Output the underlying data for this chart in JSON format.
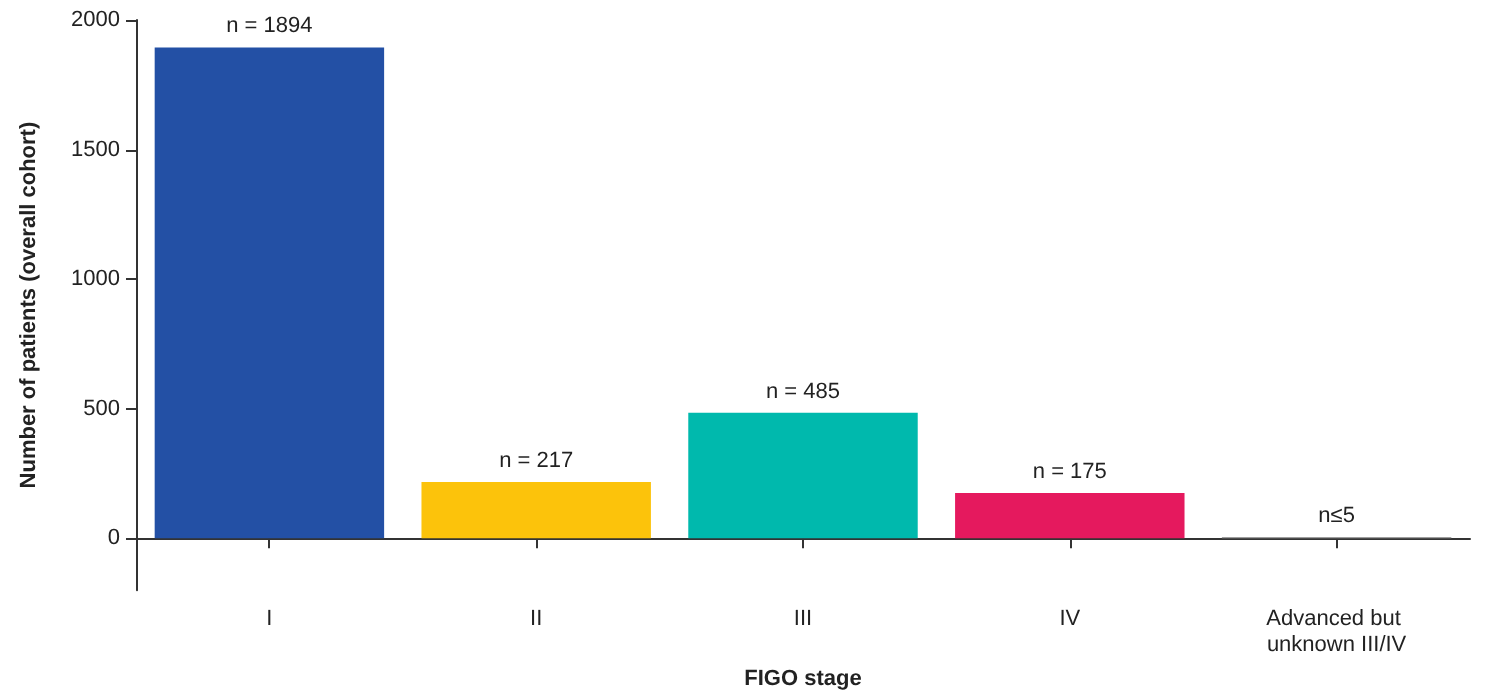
{
  "chart_data": {
    "type": "bar",
    "xlabel": "FIGO stage",
    "ylabel": "Number of patients (overall cohort)",
    "categories": [
      "I",
      "II",
      "III",
      "IV",
      "Advanced but unknown III/IV"
    ],
    "values": [
      1894,
      217,
      485,
      175,
      5
    ],
    "colors": [
      "#2350a5",
      "#fcc30b",
      "#00b9ad",
      "#e5195e",
      "#9e9e9e"
    ],
    "value_labels": [
      "n = 1894",
      "n = 217",
      "n = 485",
      "n = 175",
      "n≤5"
    ],
    "ylim": [
      -200,
      2000
    ],
    "yticks": [
      0,
      500,
      1000,
      1500,
      2000
    ]
  }
}
